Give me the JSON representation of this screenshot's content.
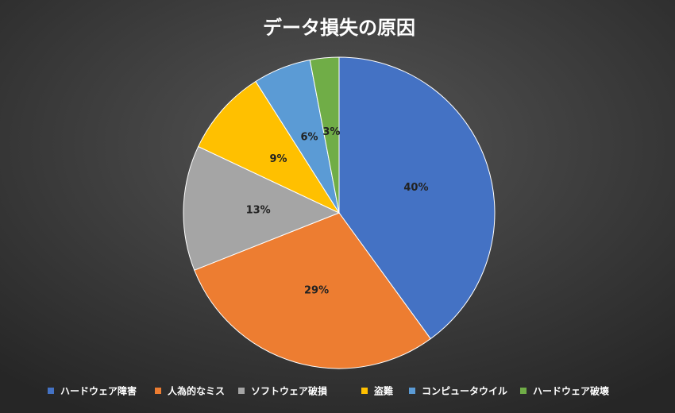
{
  "chart_data": {
    "type": "pie",
    "title": "データ損失の原因",
    "categories": [
      "ハードウェア障害",
      "人為的なミス",
      "ソフトウェア破損",
      "盗難",
      "コンピュータウイル",
      "ハードウェア破壊"
    ],
    "values": [
      40,
      29,
      13,
      9,
      6,
      3
    ],
    "value_labels": [
      "40%",
      "29%",
      "13%",
      "9%",
      "6%",
      "3%"
    ],
    "colors": [
      "#4472c4",
      "#ed7d31",
      "#a5a5a5",
      "#ffc000",
      "#5b9bd5",
      "#70ad47"
    ],
    "legend": "bottom"
  }
}
